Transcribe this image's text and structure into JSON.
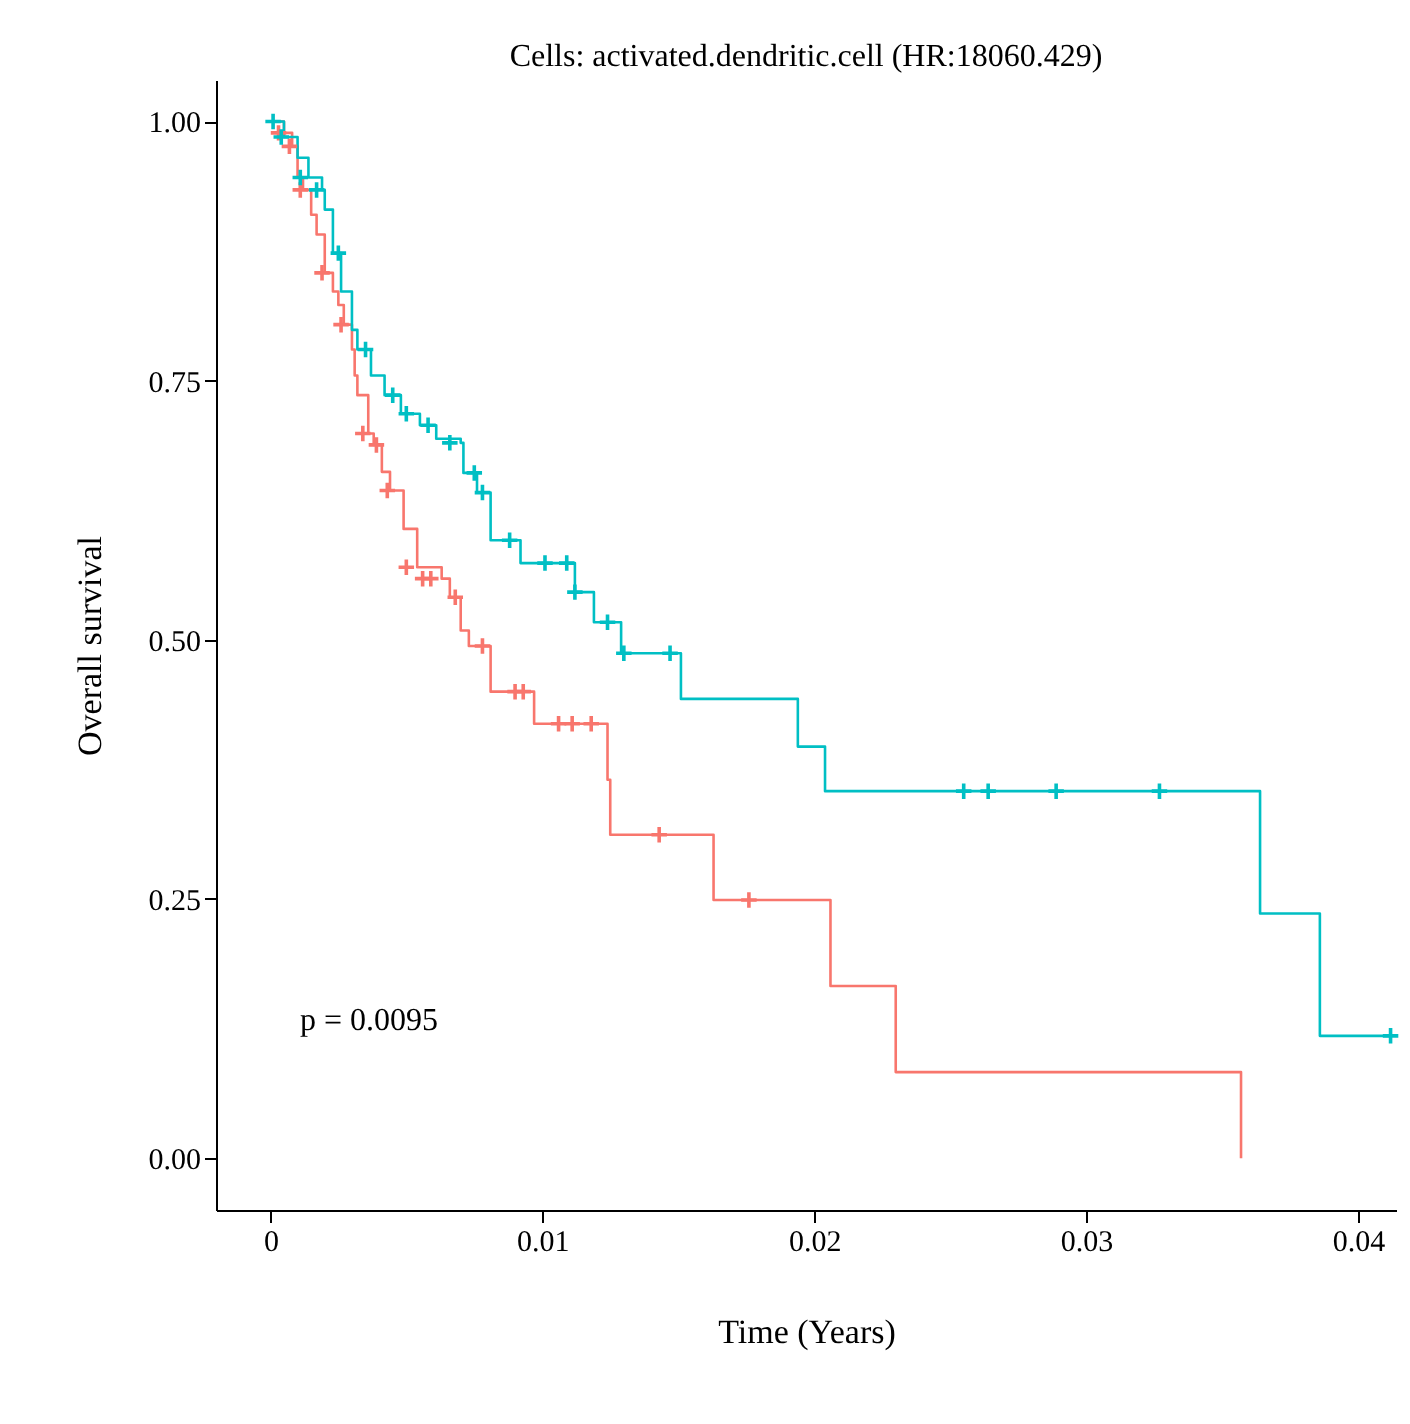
{
  "chart_data": {
    "type": "step",
    "title": "Cells: activated.dendritic.cell (HR:18060.429)",
    "xlabel": "Time (Years)",
    "ylabel": "Overall survival",
    "xlim": [
      -0.002,
      0.0414
    ],
    "xticks": [
      0,
      0.01,
      0.02,
      0.03,
      0.04
    ],
    "ylim": [
      -0.05,
      1.04
    ],
    "yticks": [
      {
        "value": 0,
        "label": "0.00"
      },
      {
        "value": 0.25,
        "label": "0.25"
      },
      {
        "value": 0.5,
        "label": "0.50"
      },
      {
        "value": 0.75,
        "label": "0.75"
      },
      {
        "value": 1,
        "label": "1.00"
      }
    ],
    "grid": false,
    "annotations": [
      "p = 0.0095"
    ],
    "series": [
      {
        "color": "#f8766d",
        "marker": "none",
        "x": [
          0,
          0.0005,
          0.0008,
          0.001,
          0.0012,
          0.0015,
          0.0017,
          0.002,
          0.0023,
          0.0025,
          0.0027,
          0.003,
          0.0031,
          0.0032,
          0.0036,
          0.0038,
          0.0041,
          0.0044,
          0.0049,
          0.0054,
          0.0063,
          0.0066,
          0.007,
          0.0073,
          0.0081,
          0.0097,
          0.0124,
          0.0125,
          0.0163,
          0.0206,
          0.023,
          0.0357
        ],
        "values": [
          1,
          0.989,
          0.976,
          0.946,
          0.934,
          0.91,
          0.891,
          0.854,
          0.836,
          0.823,
          0.804,
          0.78,
          0.755,
          0.736,
          0.699,
          0.688,
          0.662,
          0.644,
          0.607,
          0.57,
          0.559,
          0.541,
          0.509,
          0.494,
          0.45,
          0.419,
          0.365,
          0.312,
          0.249,
          0.166,
          0.083,
          0
        ]
      },
      {
        "color": "#00bfc4",
        "marker": "none",
        "x": [
          0,
          0.0005,
          0.001,
          0.0014,
          0.0019,
          0.002,
          0.0023,
          0.0026,
          0.003,
          0.0032,
          0.0037,
          0.0042,
          0.0048,
          0.0055,
          0.0061,
          0.007,
          0.0071,
          0.0076,
          0.0081,
          0.0092,
          0.0112,
          0.0119,
          0.0129,
          0.0151,
          0.0194,
          0.0204,
          0.0364,
          0.0386,
          0.0412
        ],
        "values": [
          1,
          0.985,
          0.965,
          0.946,
          0.934,
          0.915,
          0.873,
          0.836,
          0.799,
          0.78,
          0.755,
          0.736,
          0.718,
          0.707,
          0.694,
          0.69,
          0.661,
          0.642,
          0.596,
          0.574,
          0.546,
          0.517,
          0.487,
          0.443,
          0.397,
          0.354,
          0.236,
          0.118,
          0.118
        ]
      },
      {
        "type": "scatter",
        "color": "#f8766d",
        "marker": "cross",
        "x": [
          0.0003,
          0.0007,
          0.0011,
          0.0019,
          0.0026,
          0.0034,
          0.0039,
          0.0043,
          0.005,
          0.0056,
          0.0059,
          0.0068,
          0.0078,
          0.009,
          0.0093,
          0.0106,
          0.0111,
          0.0118,
          0.0143,
          0.0176
        ],
        "values": [
          0.989,
          0.976,
          0.934,
          0.854,
          0.804,
          0.699,
          0.688,
          0.644,
          0.57,
          0.559,
          0.559,
          0.541,
          0.494,
          0.45,
          0.45,
          0.419,
          0.419,
          0.419,
          0.312,
          0.249
        ]
      },
      {
        "type": "scatter",
        "color": "#00bfc4",
        "marker": "cross",
        "x": [
          0.0001,
          0.0004,
          0.0011,
          0.0017,
          0.0025,
          0.0035,
          0.0045,
          0.005,
          0.0058,
          0.0066,
          0.0075,
          0.0078,
          0.0088,
          0.0101,
          0.0109,
          0.0112,
          0.0124,
          0.013,
          0.0147,
          0.0255,
          0.0264,
          0.0289,
          0.0327,
          0.0412
        ],
        "values": [
          1,
          0.985,
          0.946,
          0.934,
          0.873,
          0.78,
          0.736,
          0.718,
          0.707,
          0.69,
          0.661,
          0.642,
          0.596,
          0.574,
          0.574,
          0.546,
          0.517,
          0.487,
          0.487,
          0.354,
          0.354,
          0.354,
          0.354,
          0.118
        ]
      }
    ]
  }
}
